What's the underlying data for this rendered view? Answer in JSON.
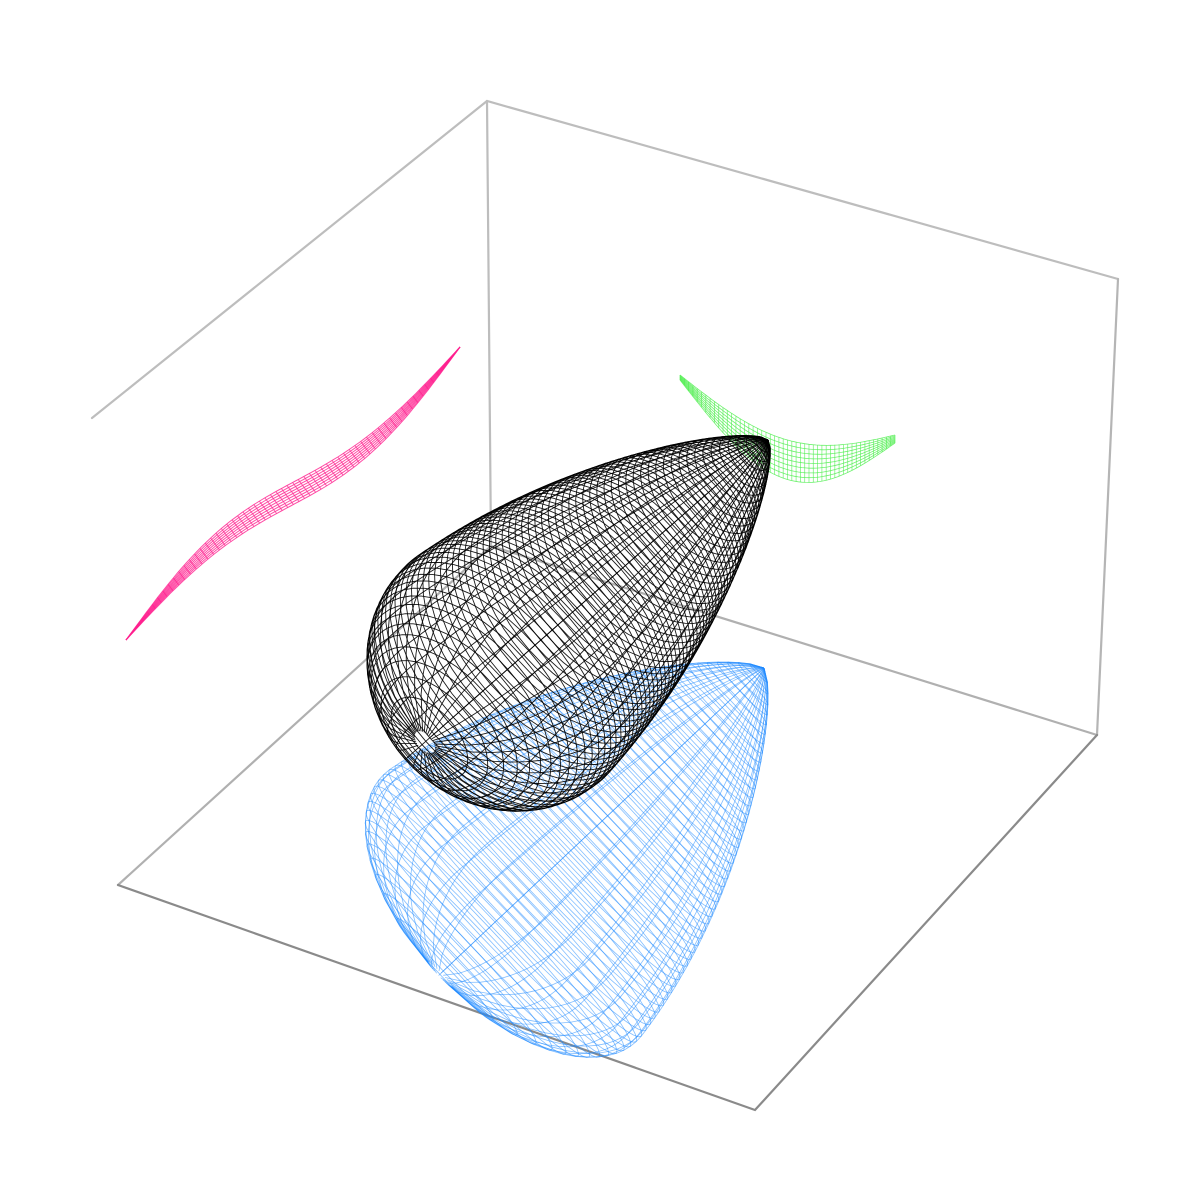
{
  "figure": {
    "type": "3d-wireframe-projection",
    "axes_visible": false,
    "tick_labels": false,
    "box_color": "#b3b3b3",
    "surfaces": [
      {
        "name": "main-surface",
        "color": "#000000",
        "style": "wireframe"
      },
      {
        "name": "floor-projection",
        "color": "#1e88ff",
        "style": "wireframe"
      },
      {
        "name": "back-wall-projection",
        "color": "#4cee4c",
        "style": "wireframe"
      },
      {
        "name": "side-wall-projection",
        "color": "#ff1f8f",
        "style": "wireframe"
      }
    ]
  }
}
